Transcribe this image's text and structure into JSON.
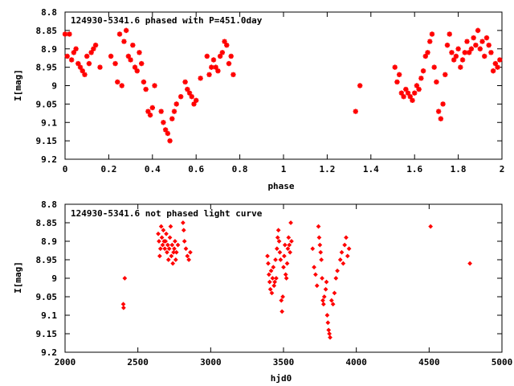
{
  "chart_data": [
    {
      "type": "scatter",
      "title": "124930-5341.6 phased with P=451.0day",
      "xlabel": "phase",
      "ylabel": "I[mag]",
      "xlim": [
        0,
        2
      ],
      "ylim": [
        8.8,
        9.2
      ],
      "y_inverted": true,
      "xticks": [
        0,
        0.2,
        0.4,
        0.6,
        0.8,
        1,
        1.2,
        1.4,
        1.6,
        1.8,
        2
      ],
      "xtick_labels": [
        "0",
        "0.2",
        "0.4",
        "0.6",
        "0.8",
        "1",
        "1.2",
        "1.4",
        "1.6",
        "1.8",
        "2"
      ],
      "yticks": [
        8.8,
        8.85,
        8.9,
        8.95,
        9.0,
        9.05,
        9.1,
        9.15,
        9.2
      ],
      "ytick_labels": [
        "8.8",
        "8.85",
        "8.9",
        "8.95",
        "9",
        "9.05",
        "9.1",
        "9.15",
        "9.2"
      ],
      "marker_color": "#ff0000",
      "series": [
        {
          "points": [
            [
              0.0,
              8.86
            ],
            [
              0.01,
              8.92
            ],
            [
              0.02,
              8.86
            ],
            [
              0.03,
              8.93
            ],
            [
              0.04,
              8.91
            ],
            [
              0.05,
              8.9
            ],
            [
              0.06,
              8.94
            ],
            [
              0.07,
              8.95
            ],
            [
              0.08,
              8.96
            ],
            [
              0.09,
              8.97
            ],
            [
              0.1,
              8.92
            ],
            [
              0.11,
              8.94
            ],
            [
              0.12,
              8.91
            ],
            [
              0.13,
              8.9
            ],
            [
              0.14,
              8.89
            ],
            [
              0.16,
              8.95
            ],
            [
              0.21,
              8.92
            ],
            [
              0.23,
              8.94
            ],
            [
              0.24,
              8.99
            ],
            [
              0.25,
              8.86
            ],
            [
              0.26,
              9.0
            ],
            [
              0.27,
              8.88
            ],
            [
              0.28,
              8.85
            ],
            [
              0.29,
              8.92
            ],
            [
              0.3,
              8.93
            ],
            [
              0.31,
              8.89
            ],
            [
              0.32,
              8.95
            ],
            [
              0.33,
              8.96
            ],
            [
              0.34,
              8.91
            ],
            [
              0.35,
              8.94
            ],
            [
              0.36,
              8.99
            ],
            [
              0.37,
              9.01
            ],
            [
              0.38,
              9.07
            ],
            [
              0.39,
              9.08
            ],
            [
              0.4,
              9.06
            ],
            [
              0.41,
              9.0
            ],
            [
              0.44,
              9.07
            ],
            [
              0.45,
              9.1
            ],
            [
              0.46,
              9.12
            ],
            [
              0.47,
              9.13
            ],
            [
              0.48,
              9.15
            ],
            [
              0.49,
              9.09
            ],
            [
              0.5,
              9.07
            ],
            [
              0.51,
              9.05
            ],
            [
              0.53,
              9.03
            ],
            [
              0.55,
              8.99
            ],
            [
              0.56,
              9.01
            ],
            [
              0.57,
              9.02
            ],
            [
              0.58,
              9.03
            ],
            [
              0.59,
              9.05
            ],
            [
              0.6,
              9.04
            ],
            [
              0.62,
              8.98
            ],
            [
              0.65,
              8.92
            ],
            [
              0.66,
              8.97
            ],
            [
              0.67,
              8.95
            ],
            [
              0.68,
              8.93
            ],
            [
              0.69,
              8.95
            ],
            [
              0.7,
              8.96
            ],
            [
              0.71,
              8.92
            ],
            [
              0.72,
              8.91
            ],
            [
              0.73,
              8.88
            ],
            [
              0.74,
              8.89
            ],
            [
              0.75,
              8.94
            ],
            [
              0.76,
              8.92
            ],
            [
              0.77,
              8.97
            ],
            [
              1.33,
              9.07
            ],
            [
              1.35,
              9.0
            ],
            [
              1.51,
              8.95
            ],
            [
              1.52,
              8.99
            ],
            [
              1.53,
              8.97
            ],
            [
              1.54,
              9.02
            ],
            [
              1.55,
              9.03
            ],
            [
              1.56,
              9.01
            ],
            [
              1.57,
              9.02
            ],
            [
              1.58,
              9.03
            ],
            [
              1.59,
              9.04
            ],
            [
              1.6,
              9.02
            ],
            [
              1.61,
              9.0
            ],
            [
              1.62,
              9.01
            ],
            [
              1.63,
              8.98
            ],
            [
              1.64,
              8.96
            ],
            [
              1.65,
              8.92
            ],
            [
              1.66,
              8.91
            ],
            [
              1.67,
              8.88
            ],
            [
              1.68,
              8.86
            ],
            [
              1.69,
              8.95
            ],
            [
              1.7,
              8.99
            ],
            [
              1.71,
              9.07
            ],
            [
              1.72,
              9.09
            ],
            [
              1.73,
              9.05
            ],
            [
              1.74,
              8.97
            ],
            [
              1.75,
              8.89
            ],
            [
              1.76,
              8.86
            ],
            [
              1.77,
              8.91
            ],
            [
              1.78,
              8.93
            ],
            [
              1.79,
              8.92
            ],
            [
              1.8,
              8.9
            ],
            [
              1.81,
              8.95
            ],
            [
              1.82,
              8.93
            ],
            [
              1.83,
              8.91
            ],
            [
              1.84,
              8.88
            ],
            [
              1.85,
              8.91
            ],
            [
              1.86,
              8.9
            ],
            [
              1.87,
              8.87
            ],
            [
              1.88,
              8.89
            ],
            [
              1.89,
              8.85
            ],
            [
              1.9,
              8.9
            ],
            [
              1.91,
              8.88
            ],
            [
              1.92,
              8.92
            ],
            [
              1.93,
              8.87
            ],
            [
              1.94,
              8.89
            ],
            [
              1.95,
              8.91
            ],
            [
              1.96,
              8.96
            ],
            [
              1.97,
              8.94
            ],
            [
              1.98,
              8.95
            ],
            [
              1.99,
              8.93
            ]
          ]
        }
      ]
    },
    {
      "type": "scatter",
      "title": "124930-5341.6 not phased light curve",
      "xlabel": "hjd0",
      "ylabel": "I[mag]",
      "xlim": [
        2000,
        5000
      ],
      "ylim": [
        8.8,
        9.2
      ],
      "y_inverted": true,
      "xticks": [
        2000,
        2500,
        3000,
        3500,
        4000,
        4500,
        5000
      ],
      "xtick_labels": [
        "2000",
        "2500",
        "3000",
        "3500",
        "4000",
        "4500",
        "5000"
      ],
      "yticks": [
        8.8,
        8.85,
        8.9,
        8.95,
        9.0,
        9.05,
        9.1,
        9.15,
        9.2
      ],
      "ytick_labels": [
        "8.8",
        "8.85",
        "8.9",
        "8.95",
        "9",
        "9.05",
        "9.1",
        "9.15",
        "9.2"
      ],
      "marker_color": "#ff0000",
      "series": [
        {
          "points": [
            [
              2400,
              9.07
            ],
            [
              2402,
              9.08
            ],
            [
              2410,
              9.0
            ],
            [
              2640,
              8.88
            ],
            [
              2645,
              8.9
            ],
            [
              2650,
              8.94
            ],
            [
              2655,
              8.92
            ],
            [
              2660,
              8.86
            ],
            [
              2665,
              8.89
            ],
            [
              2670,
              8.91
            ],
            [
              2675,
              8.87
            ],
            [
              2680,
              8.9
            ],
            [
              2685,
              8.92
            ],
            [
              2690,
              8.9
            ],
            [
              2695,
              8.88
            ],
            [
              2700,
              8.93
            ],
            [
              2705,
              8.91
            ],
            [
              2710,
              8.95
            ],
            [
              2715,
              8.92
            ],
            [
              2720,
              8.89
            ],
            [
              2725,
              8.86
            ],
            [
              2730,
              8.94
            ],
            [
              2735,
              8.91
            ],
            [
              2740,
              8.96
            ],
            [
              2745,
              8.93
            ],
            [
              2750,
              8.92
            ],
            [
              2755,
              8.9
            ],
            [
              2760,
              8.95
            ],
            [
              2765,
              8.93
            ],
            [
              2775,
              8.91
            ],
            [
              2810,
              8.85
            ],
            [
              2815,
              8.87
            ],
            [
              2820,
              8.9
            ],
            [
              2830,
              8.92
            ],
            [
              2840,
              8.94
            ],
            [
              2850,
              8.95
            ],
            [
              2860,
              8.93
            ],
            [
              3390,
              8.94
            ],
            [
              3395,
              8.96
            ],
            [
              3400,
              8.99
            ],
            [
              3405,
              9.01
            ],
            [
              3410,
              9.03
            ],
            [
              3415,
              8.98
            ],
            [
              3420,
              9.04
            ],
            [
              3425,
              9.0
            ],
            [
              3430,
              8.97
            ],
            [
              3435,
              9.02
            ],
            [
              3440,
              9.01
            ],
            [
              3445,
              8.95
            ],
            [
              3450,
              9.0
            ],
            [
              3455,
              8.92
            ],
            [
              3460,
              8.89
            ],
            [
              3465,
              8.87
            ],
            [
              3470,
              8.9
            ],
            [
              3475,
              8.93
            ],
            [
              3480,
              8.95
            ],
            [
              3485,
              9.06
            ],
            [
              3490,
              9.09
            ],
            [
              3495,
              9.05
            ],
            [
              3500,
              8.97
            ],
            [
              3505,
              8.94
            ],
            [
              3510,
              8.91
            ],
            [
              3515,
              8.99
            ],
            [
              3520,
              9.0
            ],
            [
              3525,
              8.96
            ],
            [
              3530,
              8.92
            ],
            [
              3535,
              8.89
            ],
            [
              3540,
              8.91
            ],
            [
              3545,
              8.93
            ],
            [
              3550,
              8.85
            ],
            [
              3555,
              8.9
            ],
            [
              3700,
              8.92
            ],
            [
              3710,
              8.97
            ],
            [
              3720,
              8.99
            ],
            [
              3730,
              9.02
            ],
            [
              3740,
              8.86
            ],
            [
              3745,
              8.89
            ],
            [
              3750,
              8.91
            ],
            [
              3755,
              8.93
            ],
            [
              3760,
              8.95
            ],
            [
              3765,
              9.0
            ],
            [
              3770,
              9.06
            ],
            [
              3775,
              9.07
            ],
            [
              3780,
              9.05
            ],
            [
              3790,
              9.03
            ],
            [
              3795,
              9.01
            ],
            [
              3800,
              9.1
            ],
            [
              3805,
              9.12
            ],
            [
              3810,
              9.14
            ],
            [
              3815,
              9.15
            ],
            [
              3820,
              9.16
            ],
            [
              3830,
              9.06
            ],
            [
              3840,
              9.07
            ],
            [
              3850,
              9.04
            ],
            [
              3860,
              9.0
            ],
            [
              3870,
              8.98
            ],
            [
              3890,
              8.95
            ],
            [
              3900,
              8.93
            ],
            [
              3910,
              8.96
            ],
            [
              3920,
              8.91
            ],
            [
              3930,
              8.89
            ],
            [
              3940,
              8.94
            ],
            [
              3950,
              8.92
            ],
            [
              4510,
              8.86
            ],
            [
              4780,
              8.96
            ]
          ]
        }
      ]
    }
  ]
}
